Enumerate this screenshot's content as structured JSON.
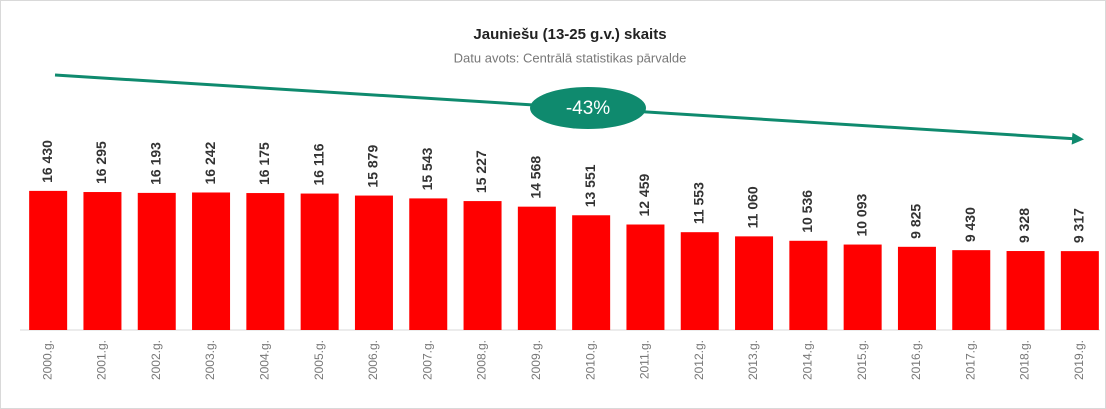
{
  "chart_data": {
    "type": "bar",
    "title": "Jauniešu (13-25 g.v.) skaits",
    "subtitle": "Datu avots: Centrālā statistikas pārvalde",
    "annotation": "-43%",
    "categories": [
      "2000.g.",
      "2001.g.",
      "2002.g.",
      "2003.g.",
      "2004.g.",
      "2005.g.",
      "2006.g.",
      "2007.g.",
      "2008.g.",
      "2009.g.",
      "2010.g.",
      "2011.g.",
      "2012.g.",
      "2013.g.",
      "2014.g.",
      "2015.g.",
      "2016.g.",
      "2017.g.",
      "2018.g.",
      "2019.g."
    ],
    "values": [
      16430,
      16295,
      16193,
      16242,
      16175,
      16116,
      15879,
      15543,
      15227,
      14568,
      13551,
      12459,
      11553,
      11060,
      10536,
      10093,
      9825,
      9430,
      9328,
      9317
    ],
    "value_labels": [
      "16 430",
      "16 295",
      "16 193",
      "16 242",
      "16 175",
      "16 116",
      "15 879",
      "15 543",
      "15 227",
      "14 568",
      "13 551",
      "12 459",
      "11 553",
      "11 060",
      "10 536",
      "10 093",
      "9 825",
      "9 430",
      "9 328",
      "9 317"
    ],
    "color": "#ff0000",
    "ylim": [
      0,
      30000
    ]
  }
}
